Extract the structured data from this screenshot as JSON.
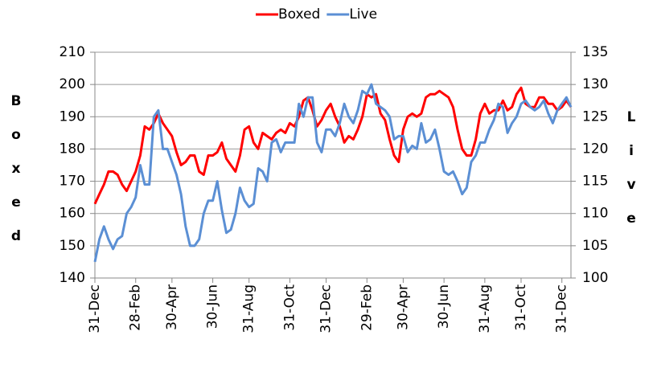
{
  "chart_data": {
    "type": "line",
    "y_label": "Boxed",
    "y2_label": "Live",
    "categories": [
      "31-Dec",
      null,
      null,
      null,
      null,
      null,
      null,
      null,
      null,
      "28-Feb",
      null,
      null,
      null,
      null,
      null,
      null,
      null,
      "30-Apr",
      null,
      null,
      null,
      null,
      null,
      null,
      null,
      null,
      "30-Jun",
      null,
      null,
      null,
      null,
      null,
      null,
      null,
      "31-Aug",
      null,
      null,
      null,
      null,
      null,
      null,
      null,
      null,
      "31-Oct",
      null,
      null,
      null,
      null,
      null,
      null,
      null,
      "31-Dec",
      null,
      null,
      null,
      null,
      null,
      null,
      null,
      null,
      "29-Feb",
      null,
      null,
      null,
      null,
      null,
      null,
      null,
      "30-Apr",
      null,
      null,
      null,
      null,
      null,
      null,
      null,
      null,
      "30-Jun",
      null,
      null,
      null,
      null,
      null,
      null,
      null,
      null,
      "31-Aug",
      null,
      null,
      null,
      null,
      null,
      null,
      null,
      "31-Oct",
      null,
      null,
      null,
      null,
      null,
      null,
      null,
      null,
      "31-Dec",
      null,
      null
    ],
    "series": [
      {
        "name": "Boxed",
        "color": "#ff0000",
        "axis": "y",
        "values": [
          163,
          166,
          169,
          173,
          173,
          172,
          169,
          167,
          170,
          173,
          178,
          187,
          186,
          188,
          191,
          188,
          186,
          184,
          179,
          175,
          176,
          178,
          178,
          173,
          172,
          178,
          178,
          179,
          182,
          177,
          175,
          173,
          178,
          186,
          187,
          182,
          180,
          185,
          184,
          183,
          185,
          186,
          185,
          188,
          187,
          190,
          195,
          196,
          192,
          187,
          189,
          192,
          194,
          190,
          187,
          182,
          184,
          183,
          186,
          190,
          197,
          196,
          197,
          191,
          189,
          183,
          178,
          176,
          186,
          190,
          191,
          190,
          191,
          196,
          197,
          197,
          198,
          197,
          196,
          193,
          186,
          180,
          178,
          178,
          183,
          191,
          194,
          191,
          192,
          192,
          195,
          192,
          193,
          197,
          199,
          194,
          193,
          193,
          196,
          196,
          194,
          194,
          192,
          193,
          195,
          193
        ]
      },
      {
        "name": "Live",
        "color": "#5b8fd4",
        "axis": "y2",
        "values": [
          102.5,
          106,
          108,
          106,
          104.5,
          106,
          106.5,
          110,
          111,
          112.5,
          117.5,
          114.5,
          114.5,
          125,
          126,
          120,
          120,
          118,
          116,
          113,
          108,
          105,
          105,
          106,
          110,
          112,
          112,
          115,
          110.5,
          107,
          107.5,
          110,
          114,
          112,
          111,
          111.5,
          117,
          116.5,
          115,
          121,
          121.5,
          119.5,
          121,
          121,
          121,
          127,
          125,
          128,
          128,
          121,
          119.5,
          123,
          123,
          122,
          124,
          127,
          125,
          124,
          126,
          129,
          128.5,
          130,
          127,
          126.5,
          126,
          125,
          121.5,
          122,
          122,
          119.5,
          120.5,
          120,
          124,
          121,
          121.5,
          123,
          120,
          116.5,
          116,
          116.5,
          115,
          113,
          114,
          118,
          119,
          121,
          121,
          123,
          124.5,
          127,
          126.5,
          122.5,
          124,
          125,
          127,
          127.5,
          126.5,
          126,
          126.5,
          127.5,
          125.5,
          124,
          126,
          127,
          128,
          126.5
        ]
      }
    ],
    "ylim": [
      140,
      210
    ],
    "yticks": [
      140,
      150,
      160,
      170,
      180,
      190,
      200,
      210
    ],
    "y2lim": [
      100,
      135
    ],
    "y2ticks": [
      100,
      105,
      110,
      115,
      120,
      125,
      130,
      135
    ],
    "grid": true,
    "legend": "top"
  }
}
